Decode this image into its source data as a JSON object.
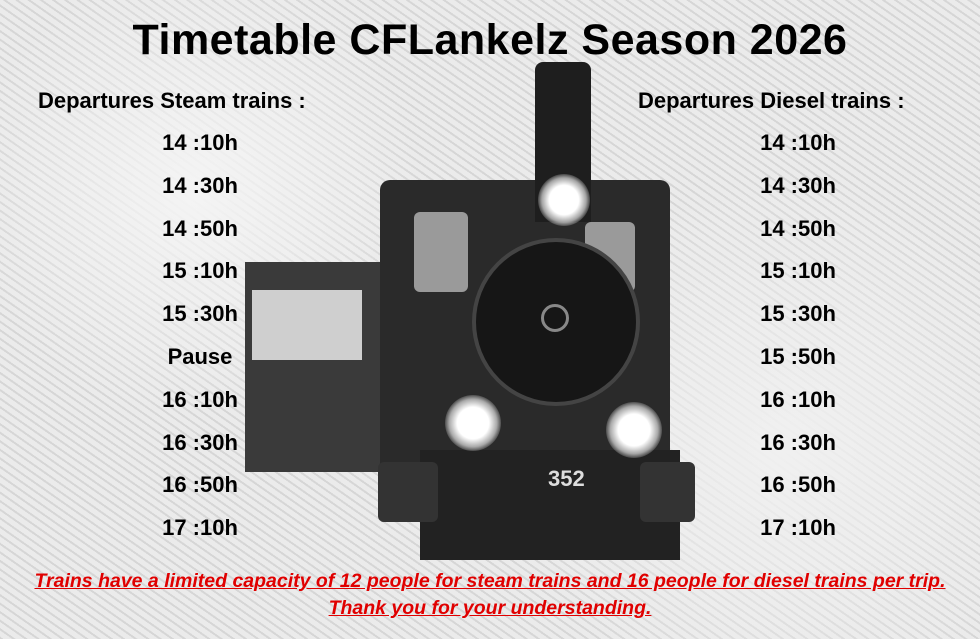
{
  "title": "Timetable CFLankelz Season 2026",
  "steam": {
    "header": "Departures Steam trains :",
    "times": [
      "14 :10h",
      "14 :30h",
      "14 :50h",
      "15 :10h",
      "15 :30h",
      "Pause",
      "16 :10h",
      "16 :30h",
      "16 :50h",
      "17 :10h"
    ]
  },
  "diesel": {
    "header": "Departures Diesel trains :",
    "times": [
      "14 :10h",
      "14 :30h",
      "14 :50h",
      "15 :10h",
      "15 :30h",
      "15 :50h",
      "16 :10h",
      "16 :30h",
      "16 :50h",
      "17 :10h"
    ]
  },
  "notice": "Trains have a limited capacity of 12 people for steam trains and 16 people for diesel trains per trip. Thank you for your understanding.",
  "locomotive_plate": "352",
  "colors": {
    "notice": "#e00000",
    "text": "#000000"
  }
}
